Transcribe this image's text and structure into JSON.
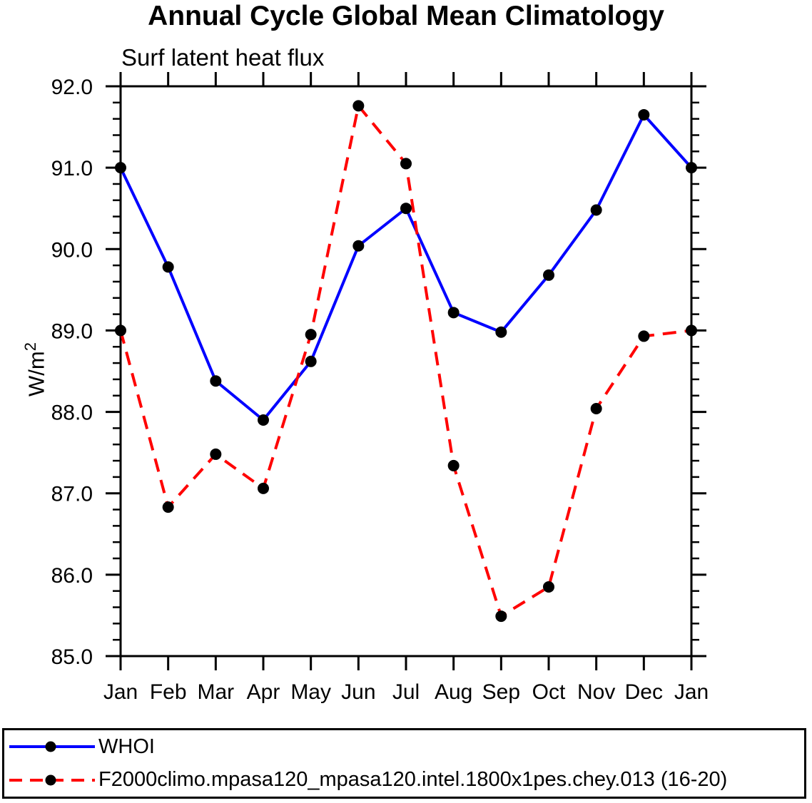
{
  "chart_data": {
    "type": "line",
    "title": "Annual Cycle Global Mean Climatology",
    "subtitle": "Surf latent heat flux",
    "xlabel": "",
    "ylabel": "W/m²",
    "categories": [
      "Jan",
      "Feb",
      "Mar",
      "Apr",
      "May",
      "Jun",
      "Jul",
      "Aug",
      "Sep",
      "Oct",
      "Nov",
      "Dec",
      "Jan"
    ],
    "ylim": [
      85.0,
      92.0
    ],
    "y_major_step": 1.0,
    "y_minor_step": 0.2,
    "y_tick_labels": [
      "85.0",
      "86.0",
      "87.0",
      "88.0",
      "89.0",
      "90.0",
      "91.0",
      "92.0"
    ],
    "grid": false,
    "axis_color": "#000000",
    "background_color": "#ffffff",
    "legend_position": "bottom-box",
    "series": [
      {
        "name": "WHOI",
        "color": "#0000ff",
        "line_style": "solid",
        "marker": "filled-circle",
        "marker_color": "#000000",
        "values": [
          91.0,
          89.78,
          88.38,
          87.9,
          88.62,
          90.04,
          90.5,
          89.22,
          88.98,
          89.68,
          90.48,
          91.65,
          91.0
        ]
      },
      {
        "name": "F2000climo.mpasa120_mpasa120.intel.1800x1pes.chey.013 (16-20)",
        "color": "#ff0000",
        "line_style": "dashed",
        "marker": "filled-circle",
        "marker_color": "#000000",
        "values": [
          89.0,
          86.83,
          87.48,
          87.06,
          88.95,
          91.76,
          91.05,
          87.34,
          85.49,
          85.85,
          88.04,
          88.93,
          89.0
        ]
      }
    ]
  }
}
